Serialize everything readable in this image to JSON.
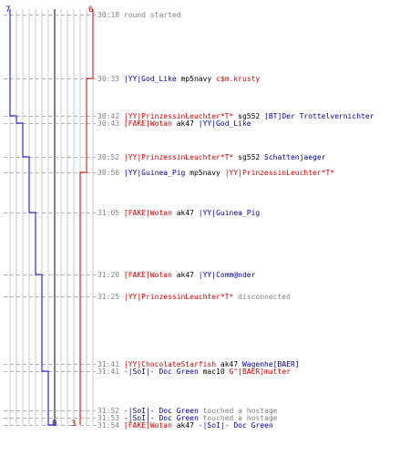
{
  "colors": {
    "blue_team": "#0000cc",
    "red_team": "#cc0000",
    "grid": "#c0c0c0",
    "time": "#808080"
  },
  "axis": {
    "blue_start": "7",
    "red_start": "6",
    "blue_end": "0",
    "red_end": "3"
  },
  "events": [
    {
      "time": "30:18",
      "parts": [
        {
          "text": "round started",
          "c": "gry"
        }
      ]
    },
    {
      "time": "30:33",
      "parts": [
        {
          "text": "|YY|God_Like",
          "c": "blue"
        },
        {
          "text": " mp5navy ",
          "c": "blk"
        },
        {
          "text": "c$m.krusty",
          "c": "red"
        }
      ]
    },
    {
      "time": "30:42",
      "parts": [
        {
          "text": "|YY|PrinzessinLeuchter*T*",
          "c": "red"
        },
        {
          "text": " sg552 ",
          "c": "blk"
        },
        {
          "text": "[BT]Der Trottelvernichter",
          "c": "blue"
        }
      ]
    },
    {
      "time": "30:43",
      "parts": [
        {
          "text": "[FAKE]Wotan",
          "c": "red"
        },
        {
          "text": " ak47 ",
          "c": "blk"
        },
        {
          "text": "|YY|God_Like",
          "c": "blue"
        }
      ]
    },
    {
      "time": "30:52",
      "parts": [
        {
          "text": "|YY|PrinzessinLeuchter*T*",
          "c": "red"
        },
        {
          "text": " sg552 ",
          "c": "blk"
        },
        {
          "text": "Schattenjaeger",
          "c": "blue"
        }
      ]
    },
    {
      "time": "30:56",
      "parts": [
        {
          "text": "|YY|Guinea_Pig",
          "c": "blue"
        },
        {
          "text": " mp5navy ",
          "c": "blk"
        },
        {
          "text": "|YY|PrinzessinLeuchter*T*",
          "c": "red"
        }
      ]
    },
    {
      "time": "31:05",
      "parts": [
        {
          "text": "[FAKE]Wotan",
          "c": "red"
        },
        {
          "text": " ak47 ",
          "c": "blk"
        },
        {
          "text": "|YY|Guinea_Pig",
          "c": "blue"
        }
      ]
    },
    {
      "time": "31:20",
      "parts": [
        {
          "text": "[FAKE]Wotan",
          "c": "red"
        },
        {
          "text": " ak47 ",
          "c": "blk"
        },
        {
          "text": "|YY|Comm@nder",
          "c": "blue"
        }
      ]
    },
    {
      "time": "31:25",
      "parts": [
        {
          "text": "|YY|PrinzessinLeuchter*T*",
          "c": "red"
        },
        {
          "text": " disconnected",
          "c": "gry"
        }
      ]
    },
    {
      "time": "31:41",
      "parts": [
        {
          "text": "|YY|ChocolateStarfish",
          "c": "red"
        },
        {
          "text": " ak47 ",
          "c": "blk"
        },
        {
          "text": "Wagenhe[BAER]",
          "c": "blue"
        }
      ]
    },
    {
      "time": "31:41",
      "parts": [
        {
          "text": "-|SoI|- Doc Green",
          "c": "blue"
        },
        {
          "text": " mac10 ",
          "c": "blk"
        },
        {
          "text": "G^[BAER]mutter",
          "c": "red"
        }
      ]
    },
    {
      "time": "31:52",
      "parts": [
        {
          "text": "-|SoI|- Doc Green",
          "c": "blue"
        },
        {
          "text": " touched a hostage",
          "c": "gry"
        }
      ]
    },
    {
      "time": "31:53",
      "parts": [
        {
          "text": "-|SoI|- Doc Green",
          "c": "blue"
        },
        {
          "text": " touched a hostage",
          "c": "gry"
        }
      ]
    },
    {
      "time": "31:54",
      "parts": [
        {
          "text": "[FAKE]Wotan",
          "c": "red"
        },
        {
          "text": " ak47 ",
          "c": "blk"
        },
        {
          "text": "-|SoI|- Doc Green",
          "c": "blue"
        }
      ]
    }
  ]
}
